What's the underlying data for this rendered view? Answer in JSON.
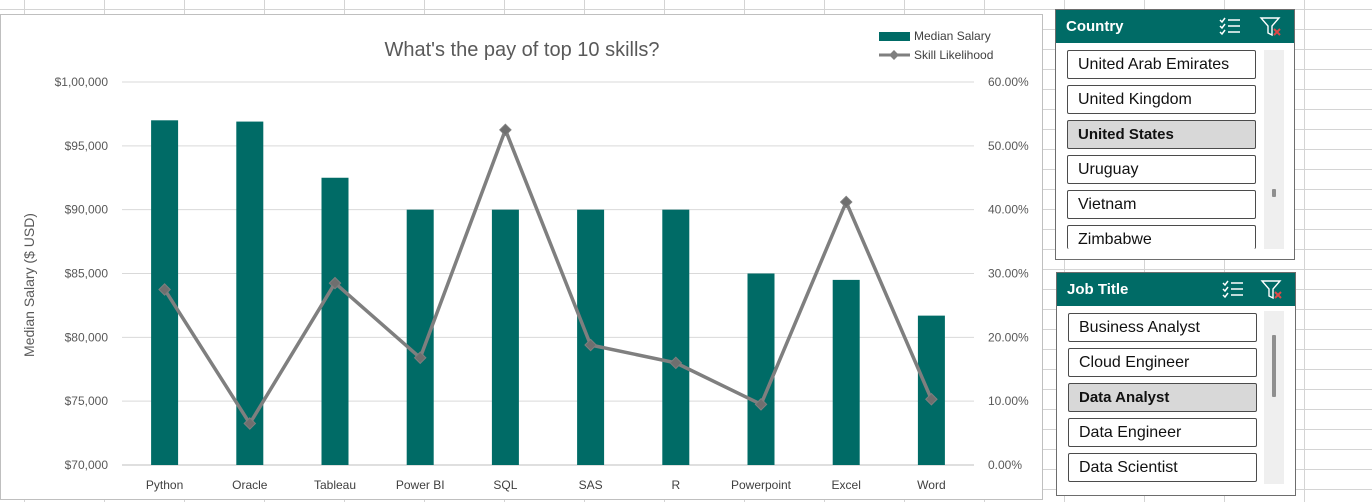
{
  "chart_data": {
    "type": "bar",
    "title": "What's the pay of top 10 skills?",
    "categories": [
      "Python",
      "Oracle",
      "Tableau",
      "Power BI",
      "SQL",
      "SAS",
      "R",
      "Powerpoint",
      "Excel",
      "Word"
    ],
    "series": [
      {
        "name": "Median Salary",
        "type": "bar",
        "axis": "left",
        "color": "#006b66",
        "values": [
          97000,
          96900,
          92500,
          90000,
          90000,
          90000,
          90000,
          85000,
          84500,
          81700
        ]
      },
      {
        "name": "Skill Likelihood",
        "type": "line",
        "axis": "right",
        "color": "#7f7f7f",
        "marker": "diamond",
        "values": [
          0.275,
          0.065,
          0.285,
          0.168,
          0.525,
          0.188,
          0.16,
          0.095,
          0.412,
          0.103
        ]
      }
    ],
    "ylabel": "Median Salary ($ USD)",
    "ylim": [
      70000,
      100000
    ],
    "yticks": [
      "$70,000",
      "$75,000",
      "$80,000",
      "$85,000",
      "$90,000",
      "$95,000",
      "$1,00,000"
    ],
    "y2lim": [
      0,
      0.6
    ],
    "y2ticks": [
      "0.00%",
      "10.00%",
      "20.00%",
      "30.00%",
      "40.00%",
      "50.00%",
      "60.00%"
    ],
    "grid": true,
    "legend": "top-right"
  },
  "slicers": {
    "country": {
      "title": "Country",
      "items": [
        {
          "label": "United Arab Emirates",
          "selected": false
        },
        {
          "label": "United Kingdom",
          "selected": false
        },
        {
          "label": "United States",
          "selected": true
        },
        {
          "label": "Uruguay",
          "selected": false
        },
        {
          "label": "Vietnam",
          "selected": false
        },
        {
          "label": "Zimbabwe",
          "selected": false
        }
      ]
    },
    "job_title": {
      "title": "Job Title",
      "items": [
        {
          "label": "Business Analyst",
          "selected": false
        },
        {
          "label": "Cloud Engineer",
          "selected": false
        },
        {
          "label": "Data Analyst",
          "selected": true
        },
        {
          "label": "Data Engineer",
          "selected": false
        },
        {
          "label": "Data Scientist",
          "selected": false
        }
      ]
    }
  },
  "icons": {
    "multi_select": "multi-select-icon",
    "clear_filter": "clear-filter-icon"
  },
  "colors": {
    "accent": "#006b66",
    "line": "#7f7f7f",
    "selected_item": "#d8d8d8",
    "clear_x": "#e04848"
  }
}
